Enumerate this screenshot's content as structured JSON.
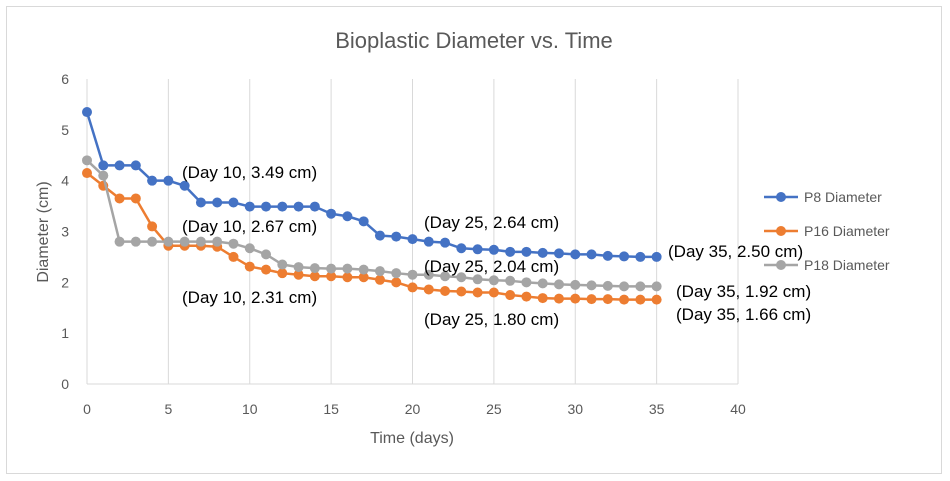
{
  "chart_data": {
    "type": "line",
    "title": "Bioplastic Diameter vs. Time",
    "xlabel": "Time (days)",
    "ylabel": "Diameter (cm)",
    "xlim": [
      0,
      40
    ],
    "ylim": [
      0,
      6
    ],
    "x_ticks": [
      0,
      5,
      10,
      15,
      20,
      25,
      30,
      35,
      40
    ],
    "y_ticks": [
      0,
      1,
      2,
      3,
      4,
      5,
      6
    ],
    "grid": "vertical",
    "legend_position": "right",
    "x": [
      0,
      1,
      2,
      3,
      4,
      5,
      6,
      7,
      8,
      9,
      10,
      11,
      12,
      13,
      14,
      15,
      16,
      17,
      18,
      19,
      20,
      21,
      22,
      23,
      24,
      25,
      26,
      27,
      28,
      29,
      30,
      31,
      32,
      33,
      34,
      35
    ],
    "series": [
      {
        "name": "P8 Diameter",
        "color": "#4472C4",
        "values": [
          5.35,
          4.3,
          4.3,
          4.3,
          4.0,
          4.0,
          3.9,
          3.57,
          3.57,
          3.57,
          3.49,
          3.49,
          3.49,
          3.49,
          3.49,
          3.35,
          3.3,
          3.2,
          2.92,
          2.9,
          2.85,
          2.8,
          2.78,
          2.67,
          2.65,
          2.64,
          2.6,
          2.6,
          2.58,
          2.57,
          2.55,
          2.55,
          2.52,
          2.51,
          2.5,
          2.5
        ]
      },
      {
        "name": "P16 Diameter",
        "color": "#ED7D31",
        "values": [
          4.15,
          3.9,
          3.65,
          3.65,
          3.1,
          2.72,
          2.72,
          2.72,
          2.7,
          2.5,
          2.31,
          2.25,
          2.18,
          2.15,
          2.12,
          2.12,
          2.1,
          2.1,
          2.05,
          2.0,
          1.9,
          1.86,
          1.83,
          1.82,
          1.8,
          1.8,
          1.75,
          1.72,
          1.69,
          1.68,
          1.68,
          1.67,
          1.67,
          1.66,
          1.66,
          1.66
        ]
      },
      {
        "name": "P18 Diameter",
        "color": "#A5A5A5",
        "values": [
          4.4,
          4.1,
          2.8,
          2.8,
          2.8,
          2.8,
          2.8,
          2.8,
          2.8,
          2.76,
          2.67,
          2.55,
          2.35,
          2.3,
          2.28,
          2.27,
          2.27,
          2.25,
          2.22,
          2.18,
          2.15,
          2.15,
          2.12,
          2.1,
          2.06,
          2.04,
          2.03,
          2.0,
          1.98,
          1.96,
          1.95,
          1.94,
          1.93,
          1.92,
          1.92,
          1.92
        ]
      }
    ],
    "annotations": [
      {
        "text": "(Day 10, 3.49 cm)",
        "series": 0,
        "x": 10,
        "y": 3.49
      },
      {
        "text": "(Day 10, 2.67 cm)",
        "series": 2,
        "x": 10,
        "y": 2.67
      },
      {
        "text": "(Day 10, 2.31 cm)",
        "series": 1,
        "x": 10,
        "y": 2.31
      },
      {
        "text": "(Day 25, 2.64 cm)",
        "series": 0,
        "x": 25,
        "y": 2.64
      },
      {
        "text": "(Day 25, 2.04 cm)",
        "series": 2,
        "x": 25,
        "y": 2.04
      },
      {
        "text": "(Day 25, 1.80 cm)",
        "series": 1,
        "x": 25,
        "y": 1.8
      },
      {
        "text": "(Day 35, 2.50 cm)",
        "series": 0,
        "x": 35,
        "y": 2.5
      },
      {
        "text": "(Day 35, 1.92 cm)",
        "series": 2,
        "x": 35,
        "y": 1.92
      },
      {
        "text": "(Day 35, 1.66 cm)",
        "series": 1,
        "x": 35,
        "y": 1.66
      }
    ]
  }
}
